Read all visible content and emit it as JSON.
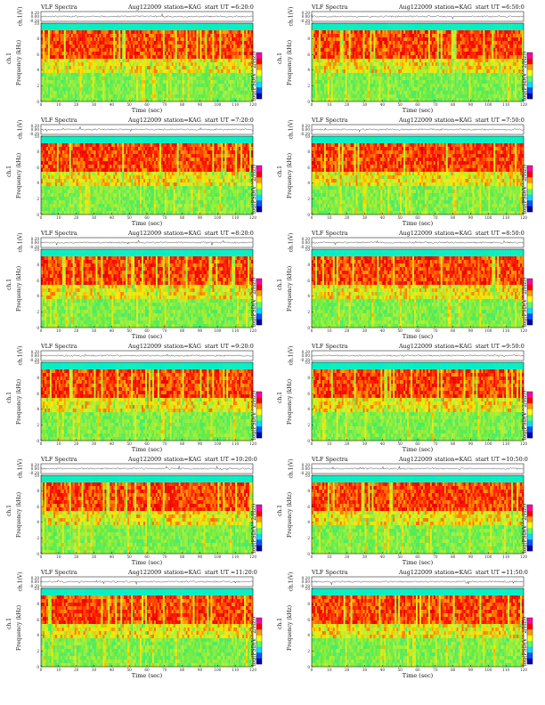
{
  "chart_data": {
    "type": "heatmap",
    "panel_common": {
      "title_left": "VLF Spectra",
      "date": "Aug122009",
      "station": "station=KAG",
      "ylabel_top": "ch.1(V)",
      "ylabel_top_ticks": [
        "0.20",
        "0.00",
        "-0.20"
      ],
      "ylabel_main_line1": "ch.1",
      "ylabel_main_line2": "Frequency (kHz)",
      "yticks": [
        "0",
        "2",
        "4",
        "6",
        "8",
        "10"
      ],
      "xticks": [
        "0",
        "10",
        "20",
        "30",
        "40",
        "50",
        "60",
        "70",
        "80",
        "90",
        "100",
        "110",
        "120"
      ],
      "xlabel": "Time (sec)",
      "xlim": [
        0,
        120
      ],
      "ylim": [
        0,
        10
      ],
      "colorbar_label": "log(PSD(V^2/Hz))",
      "colors": {
        "low": "#00ffff",
        "mid": "#66ee55",
        "high_yellow": "#ffee00",
        "high": "#ff2200",
        "colorbar": [
          "#0000aa",
          "#0055ff",
          "#00ddff",
          "#55ff66",
          "#ffff00",
          "#ff9900",
          "#ff0000",
          "#ff00aa"
        ]
      }
    },
    "panels": [
      {
        "start_label": "start UT =6:20:0"
      },
      {
        "start_label": "start UT =6:50:0"
      },
      {
        "start_label": "start UT =7:20:0"
      },
      {
        "start_label": "start UT =7:50:0"
      },
      {
        "start_label": "start UT =8:20:0"
      },
      {
        "start_label": "start UT =8:50:0"
      },
      {
        "start_label": "start UT =9:20:0"
      },
      {
        "start_label": "start UT =9:50:0"
      },
      {
        "start_label": "start UT =10:20:0"
      },
      {
        "start_label": "start UT =10:50:0"
      },
      {
        "start_label": "start UT =11:20:0"
      },
      {
        "start_label": "start UT =11:50:0"
      }
    ]
  }
}
